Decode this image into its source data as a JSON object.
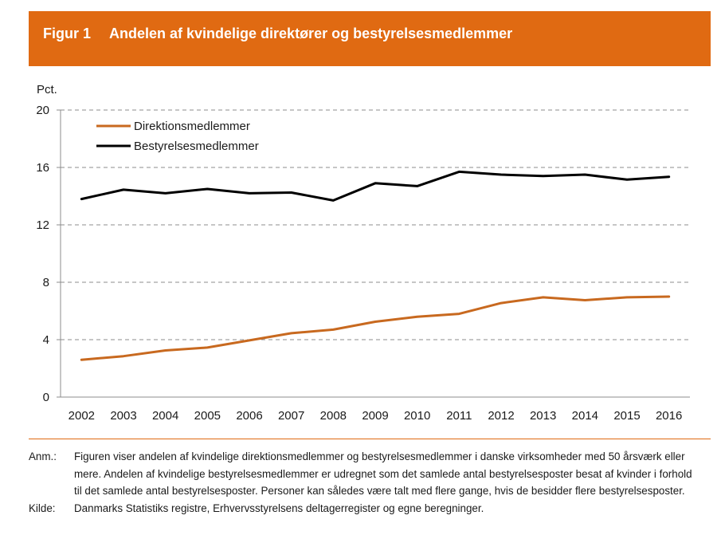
{
  "header": {
    "figure_label": "Figur 1",
    "title": "Andelen af kvindelige direktører og bestyrelsesmedlemmer",
    "color": "#e06a12"
  },
  "chart_data": {
    "type": "line",
    "title": "",
    "ylabel": "Pct.",
    "xlabel": "",
    "ylim": [
      0,
      20
    ],
    "yticks": [
      0,
      4,
      8,
      12,
      16,
      20
    ],
    "grid": "horizontal dashed",
    "legend_position": "top-left",
    "categories": [
      "2002",
      "2003",
      "2004",
      "2005",
      "2006",
      "2007",
      "2008",
      "2009",
      "2010",
      "2011",
      "2012",
      "2013",
      "2014",
      "2015",
      "2016"
    ],
    "series": [
      {
        "name": "Direktionsmedlemmer",
        "color": "#c8691f",
        "values": [
          2.6,
          2.85,
          3.25,
          3.45,
          3.95,
          4.45,
          4.7,
          5.25,
          5.6,
          5.8,
          6.55,
          6.95,
          6.75,
          6.95,
          7.0
        ]
      },
      {
        "name": "Bestyrelsesmedlemmer",
        "color": "#000000",
        "values": [
          13.8,
          14.45,
          14.2,
          14.5,
          14.2,
          14.25,
          13.7,
          14.9,
          14.7,
          15.7,
          15.5,
          15.4,
          15.5,
          15.15,
          15.35
        ]
      }
    ]
  },
  "notes": {
    "anm_label": "Anm.:",
    "anm_text": "Figuren viser andelen af kvindelige direktionsmedlemmer og bestyrelsesmedlemmer i danske virksomheder med 50 årsværk eller mere. Andelen af kvindelige bestyrelsesmedlemmer er udregnet som det samlede antal bestyrelsesposter besat af kvinder i forhold til det samlede antal bestyrelsesposter. Personer kan således være talt med flere gange, hvis de besidder flere bestyrelsesposter.",
    "kilde_label": "Kilde:",
    "kilde_text": "Danmarks Statistiks registre, Erhvervsstyrelsens deltagerregister og egne beregninger."
  }
}
